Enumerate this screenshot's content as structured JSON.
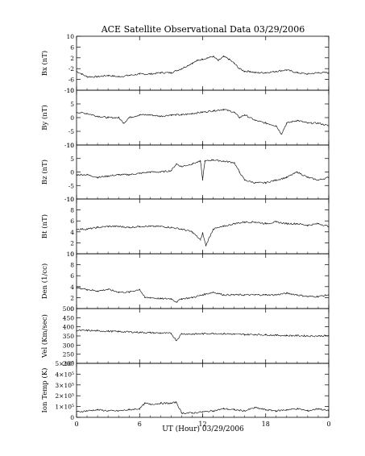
{
  "figure": {
    "title": "ACE Satellite Observational Data   03/29/2006",
    "xlabel": "UT (Hour)   03/29/2006"
  },
  "colors": {
    "trace": "#1a1a1a",
    "axis": "#000000",
    "background": "#ffffff"
  },
  "chart_data": [
    {
      "type": "line",
      "ylabel": "Bx (nT)",
      "xlim": [
        0,
        24
      ],
      "ylim": [
        -10,
        10
      ],
      "yticks": [
        "10",
        "6",
        "2",
        "-2",
        "-6",
        "-10"
      ],
      "yticks_values": [
        10,
        6,
        2,
        -2,
        -6,
        -10
      ],
      "xticks": [
        "0",
        "6",
        "12",
        "18",
        "0"
      ],
      "xticks_values": [
        0,
        6,
        12,
        18,
        24
      ],
      "x": [
        0,
        0.5,
        1,
        2,
        3,
        4,
        5,
        6,
        7,
        8,
        9,
        10,
        11,
        11.5,
        12,
        12.5,
        13,
        13.5,
        14,
        14.5,
        15,
        15.5,
        16,
        16.5,
        17,
        18,
        19,
        20,
        21,
        22,
        23,
        24
      ],
      "values": [
        -3,
        -4,
        -5,
        -5,
        -4.5,
        -5,
        -4.5,
        -4,
        -4,
        -3.5,
        -3.5,
        -2,
        0,
        1,
        1.5,
        2,
        2.5,
        1,
        2.5,
        1.5,
        0,
        -2,
        -3,
        -3,
        -3.5,
        -3.5,
        -3,
        -2.5,
        -3.5,
        -4,
        -3.5,
        -3.5
      ]
    },
    {
      "type": "line",
      "ylabel": "By (nT)",
      "xlim": [
        0,
        24
      ],
      "ylim": [
        -10,
        10
      ],
      "yticks": [
        "10",
        "5",
        "0",
        "-5",
        "-10"
      ],
      "yticks_values": [
        10,
        5,
        0,
        -5,
        -10
      ],
      "xticks": [
        "0",
        "6",
        "12",
        "18",
        "0"
      ],
      "xticks_values": [
        0,
        6,
        12,
        18,
        24
      ],
      "x": [
        0,
        1,
        2,
        3,
        4,
        4.5,
        5,
        6,
        7,
        8,
        9,
        10,
        11,
        12,
        13,
        14,
        15,
        15.5,
        16,
        17,
        18,
        19,
        19.5,
        20,
        21,
        22,
        23,
        24
      ],
      "values": [
        2,
        1.5,
        0.5,
        0,
        0,
        -2,
        0,
        1,
        1,
        0.5,
        1,
        1,
        1.5,
        2,
        2.5,
        3,
        2,
        0,
        1,
        -1,
        -2,
        -3,
        -6,
        -2,
        -1,
        -2,
        -2,
        -3
      ]
    },
    {
      "type": "line",
      "ylabel": "Bz (nT)",
      "xlim": [
        0,
        24
      ],
      "ylim": [
        -10,
        10
      ],
      "yticks": [
        "10",
        "5",
        "0",
        "-5",
        "-10"
      ],
      "yticks_values": [
        10,
        5,
        0,
        -5,
        -10
      ],
      "xticks": [
        "0",
        "6",
        "12",
        "18",
        "0"
      ],
      "xticks_values": [
        0,
        6,
        12,
        18,
        24
      ],
      "x": [
        0,
        1,
        2,
        3,
        4,
        5,
        6,
        7,
        8,
        9,
        9.5,
        10,
        11,
        11.8,
        12,
        12.2,
        13,
        14,
        15,
        15.5,
        16,
        17,
        18,
        19,
        20,
        21,
        22,
        23,
        24
      ],
      "values": [
        -1,
        -1,
        -2,
        -1.5,
        -1,
        -1,
        -0.5,
        0,
        0,
        0.5,
        3,
        2,
        3,
        4,
        -3,
        4,
        4.5,
        4,
        3.5,
        0,
        -3,
        -4,
        -4,
        -3,
        -2,
        0,
        -2,
        -3,
        -2
      ]
    },
    {
      "type": "line",
      "ylabel": "Bt (nT)",
      "xlim": [
        0,
        24
      ],
      "ylim": [
        0,
        10
      ],
      "yticks": [
        "10",
        "8",
        "6",
        "4",
        "2",
        "0"
      ],
      "yticks_values": [
        10,
        8,
        6,
        4,
        2,
        0
      ],
      "xticks": [
        "0",
        "6",
        "12",
        "18",
        "0"
      ],
      "xticks_values": [
        0,
        6,
        12,
        18,
        24
      ],
      "x": [
        0,
        1,
        2,
        3,
        4,
        5,
        6,
        7,
        8,
        9,
        10,
        11,
        11.8,
        12,
        12.3,
        13,
        14,
        15,
        16,
        17,
        18,
        19,
        20,
        21,
        22,
        23,
        24
      ],
      "values": [
        4.5,
        4.5,
        4.8,
        5,
        5,
        4.8,
        5,
        5,
        5,
        4.8,
        4.5,
        4,
        2.5,
        3.8,
        1.5,
        4.5,
        5,
        5.5,
        5.8,
        5.8,
        5.5,
        5.8,
        5.5,
        5.5,
        5.2,
        5.5,
        5
      ]
    },
    {
      "type": "line",
      "ylabel": "Den (1/cc)",
      "xlim": [
        0,
        24
      ],
      "ylim": [
        0,
        10
      ],
      "yticks": [
        "10",
        "8",
        "6",
        "4",
        "2",
        "0"
      ],
      "yticks_values": [
        10,
        8,
        6,
        4,
        2,
        0
      ],
      "xticks": [
        "0",
        "6",
        "12",
        "18",
        "0"
      ],
      "xticks_values": [
        0,
        6,
        12,
        18,
        24
      ],
      "x": [
        0,
        1,
        2,
        3,
        4,
        5,
        6,
        6.5,
        7,
        8,
        9,
        9.5,
        10,
        11,
        12,
        13,
        14,
        15,
        16,
        17,
        18,
        19,
        20,
        21,
        22,
        23,
        24
      ],
      "values": [
        3.8,
        3.5,
        3.2,
        3.5,
        3,
        3,
        3.5,
        2,
        2,
        1.8,
        1.8,
        1.2,
        1.8,
        2,
        2.5,
        3,
        2.5,
        2.5,
        2.5,
        2.5,
        2.5,
        2.5,
        2.8,
        2.5,
        2.2,
        2.2,
        2.5
      ]
    },
    {
      "type": "line",
      "ylabel": "Vel (Km/sec)",
      "xlim": [
        0,
        24
      ],
      "ylim": [
        200,
        500
      ],
      "yticks": [
        "500",
        "450",
        "400",
        "350",
        "300",
        "250",
        "200"
      ],
      "yticks_values": [
        500,
        450,
        400,
        350,
        300,
        250,
        200
      ],
      "xticks": [
        "0",
        "6",
        "12",
        "18",
        "0"
      ],
      "xticks_values": [
        0,
        6,
        12,
        18,
        24
      ],
      "x": [
        0,
        1,
        2,
        3,
        4,
        5,
        6,
        7,
        8,
        9,
        9.5,
        10,
        11,
        12,
        13,
        14,
        15,
        16,
        17,
        18,
        19,
        20,
        21,
        22,
        23,
        24
      ],
      "values": [
        380,
        380,
        378,
        376,
        374,
        372,
        370,
        368,
        366,
        364,
        325,
        362,
        360,
        362,
        364,
        362,
        360,
        358,
        358,
        356,
        354,
        352,
        352,
        350,
        350,
        352
      ]
    },
    {
      "type": "line",
      "ylabel": "Ion Temp (K)",
      "xlim": [
        0,
        24
      ],
      "ylim": [
        0,
        500000
      ],
      "yticks": [
        "5×10⁵",
        "4×10⁵",
        "3×10⁵",
        "2×10⁵",
        "1×10⁵",
        "0"
      ],
      "yticks_values": [
        500000,
        400000,
        300000,
        200000,
        100000,
        0
      ],
      "xticks": [
        "0",
        "6",
        "12",
        "18",
        "0"
      ],
      "xticks_values": [
        0,
        6,
        12,
        18,
        24
      ],
      "x": [
        0,
        1,
        2,
        3,
        4,
        5,
        6,
        6.5,
        7,
        8,
        9,
        9.5,
        10,
        11,
        12,
        13,
        14,
        15,
        16,
        17,
        18,
        19,
        20,
        21,
        22,
        23,
        24
      ],
      "values": [
        50000,
        60000,
        70000,
        60000,
        60000,
        70000,
        80000,
        130000,
        120000,
        130000,
        130000,
        140000,
        40000,
        40000,
        50000,
        60000,
        80000,
        70000,
        60000,
        90000,
        70000,
        60000,
        70000,
        80000,
        60000,
        80000,
        60000
      ]
    }
  ]
}
